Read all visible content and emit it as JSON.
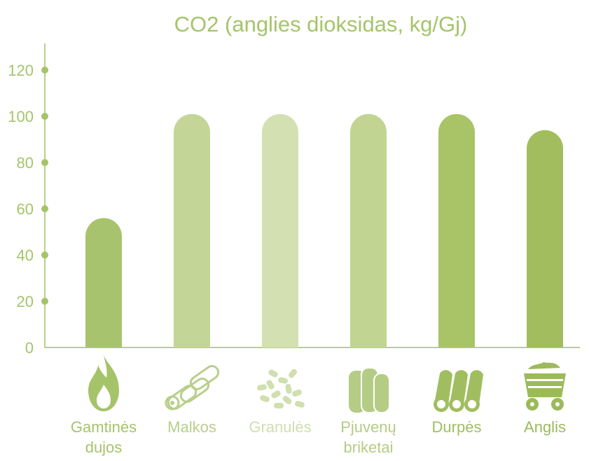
{
  "chart_data": {
    "type": "bar",
    "title": "CO2 (anglies dioksidas, kg/Gj)",
    "xlabel": "",
    "ylabel": "",
    "ylim": [
      0,
      130
    ],
    "yticks": [
      "0",
      "20",
      "40",
      "60",
      "80",
      "100",
      "120"
    ],
    "grid": false,
    "legend": "none",
    "categories": [
      {
        "label": [
          "Gamtinės",
          "dujos"
        ],
        "icon": "flame-icon",
        "color": "#a8c36d",
        "label_color": "#a5c46a"
      },
      {
        "label": [
          "Malkos"
        ],
        "icon": "logs-icon",
        "color": "#c4d697",
        "label_color": "#b9cf8a"
      },
      {
        "label": [
          "Granulės"
        ],
        "icon": "pellets-icon",
        "color": "#d3e0b1",
        "label_color": "#cfdfae"
      },
      {
        "label": [
          "Pjuvenų",
          "briketai"
        ],
        "icon": "briquettes-icon",
        "color": "#c1d492",
        "label_color": "#b5cc84"
      },
      {
        "label": [
          "Durpės"
        ],
        "icon": "peat-icon",
        "color": "#a9c367",
        "label_color": "#a0be60"
      },
      {
        "label": [
          "Anglis"
        ],
        "icon": "coal-cart-icon",
        "color": "#a2bd5e",
        "label_color": "#9cba5b"
      }
    ],
    "values": [
      56,
      101,
      101,
      101,
      101,
      94
    ]
  }
}
